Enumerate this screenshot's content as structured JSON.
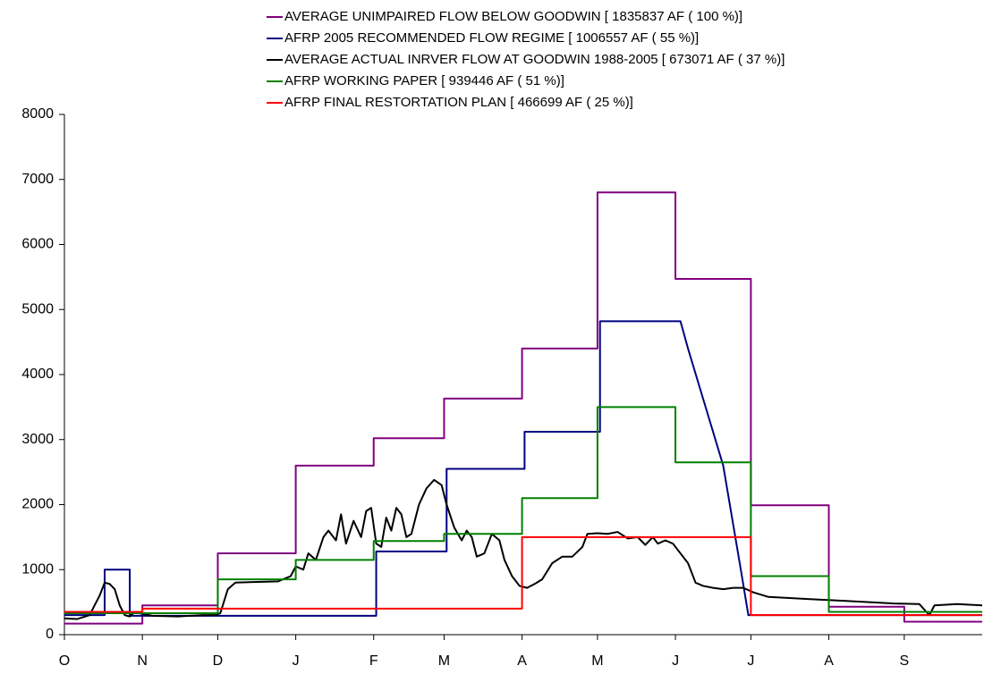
{
  "chart_data": {
    "type": "line",
    "xlim": [
      0,
      365
    ],
    "xticks": [
      {
        "value": 0,
        "label": "O"
      },
      {
        "value": 31,
        "label": "N"
      },
      {
        "value": 61,
        "label": "D"
      },
      {
        "value": 92,
        "label": "J"
      },
      {
        "value": 123,
        "label": "F"
      },
      {
        "value": 151,
        "label": "M"
      },
      {
        "value": 182,
        "label": "A"
      },
      {
        "value": 212,
        "label": "M"
      },
      {
        "value": 243,
        "label": "J"
      },
      {
        "value": 273,
        "label": "J"
      },
      {
        "value": 304,
        "label": "A"
      },
      {
        "value": 334,
        "label": "S"
      }
    ],
    "ylim": [
      0,
      8000
    ],
    "yticks": [
      0,
      1000,
      2000,
      3000,
      4000,
      5000,
      6000,
      7000,
      8000
    ],
    "grid": false,
    "series": [
      {
        "name": "AVERAGE UNIMPAIRED FLOW BELOW GOODWIN [ 1835837 AF ( 100 %)]",
        "color": "#800080",
        "x": [
          0,
          31,
          31,
          61,
          61,
          92,
          92,
          123,
          123,
          151,
          151,
          182,
          182,
          212,
          212,
          243,
          243,
          273,
          273,
          304,
          304,
          334,
          334,
          365
        ],
        "values": [
          170,
          170,
          450,
          450,
          1250,
          1250,
          2600,
          2600,
          3020,
          3020,
          3630,
          3630,
          4400,
          4400,
          6800,
          6800,
          5470,
          5470,
          1990,
          1990,
          430,
          430,
          200,
          200
        ]
      },
      {
        "name": "AFRP 2005 RECOMMENDED FLOW REGIME [ 1006557 AF ( 55 %)]",
        "color": "#000080",
        "x": [
          0,
          16,
          16,
          26,
          26,
          124,
          124,
          152,
          152,
          183,
          183,
          213,
          213,
          245,
          248,
          255,
          262,
          269,
          272,
          365
        ],
        "values": [
          300,
          300,
          1000,
          1000,
          290,
          290,
          1280,
          1280,
          2550,
          2550,
          3120,
          3120,
          4820,
          4820,
          4400,
          3500,
          2600,
          1000,
          300,
          300
        ]
      },
      {
        "name": "AVERAGE ACTUAL INRVER FLOW AT GOODWIN 1988-2005 [ 673071 AF ( 37 %)]",
        "color": "#000000",
        "x": [
          0,
          5,
          10,
          14,
          16,
          18,
          20,
          22,
          24,
          26,
          28,
          31,
          35,
          45,
          55,
          60,
          62,
          65,
          68,
          75,
          85,
          90,
          92,
          95,
          97,
          100,
          103,
          105,
          108,
          110,
          112,
          115,
          118,
          120,
          122,
          124,
          126,
          128,
          130,
          132,
          134,
          136,
          138,
          141,
          144,
          147,
          150,
          152,
          155,
          158,
          160,
          162,
          164,
          167,
          170,
          173,
          175,
          178,
          181,
          184,
          187,
          190,
          194,
          198,
          202,
          206,
          208,
          212,
          216,
          220,
          224,
          228,
          231,
          234,
          236,
          239,
          242,
          245,
          248,
          251,
          254,
          258,
          262,
          266,
          270,
          274,
          280,
          290,
          300,
          310,
          320,
          330,
          340,
          344,
          346,
          355,
          365
        ],
        "values": [
          250,
          240,
          300,
          600,
          800,
          780,
          700,
          450,
          300,
          280,
          350,
          320,
          290,
          280,
          300,
          300,
          330,
          700,
          800,
          810,
          820,
          900,
          1050,
          1000,
          1250,
          1150,
          1500,
          1600,
          1450,
          1850,
          1400,
          1750,
          1500,
          1900,
          1950,
          1400,
          1350,
          1800,
          1600,
          1950,
          1850,
          1500,
          1550,
          2000,
          2250,
          2380,
          2300,
          2000,
          1650,
          1450,
          1600,
          1500,
          1200,
          1250,
          1550,
          1450,
          1150,
          900,
          750,
          720,
          780,
          850,
          1100,
          1200,
          1200,
          1350,
          1550,
          1560,
          1550,
          1580,
          1480,
          1500,
          1380,
          1500,
          1400,
          1450,
          1400,
          1250,
          1100,
          800,
          750,
          720,
          700,
          720,
          720,
          650,
          580,
          560,
          540,
          520,
          500,
          480,
          470,
          300,
          450,
          470,
          450
        ]
      },
      {
        "name": "AFRP  WORKING PAPER  [ 939446 AF ( 51 %)]",
        "color": "#008000",
        "x": [
          0,
          61,
          61,
          92,
          92,
          123,
          123,
          151,
          151,
          182,
          182,
          212,
          212,
          243,
          243,
          273,
          273,
          304,
          304,
          365
        ],
        "values": [
          330,
          330,
          850,
          850,
          1150,
          1150,
          1440,
          1440,
          1550,
          1550,
          2100,
          2100,
          3500,
          3500,
          2650,
          2650,
          900,
          900,
          350,
          350
        ]
      },
      {
        "name": "AFRP FINAL RESTORTATION PLAN  [ 466699 AF ( 25 %)]",
        "color": "#ff0000",
        "x": [
          0,
          31,
          31,
          182,
          182,
          273,
          273,
          365
        ],
        "values": [
          350,
          350,
          400,
          400,
          1500,
          1500,
          300,
          300
        ]
      }
    ]
  }
}
